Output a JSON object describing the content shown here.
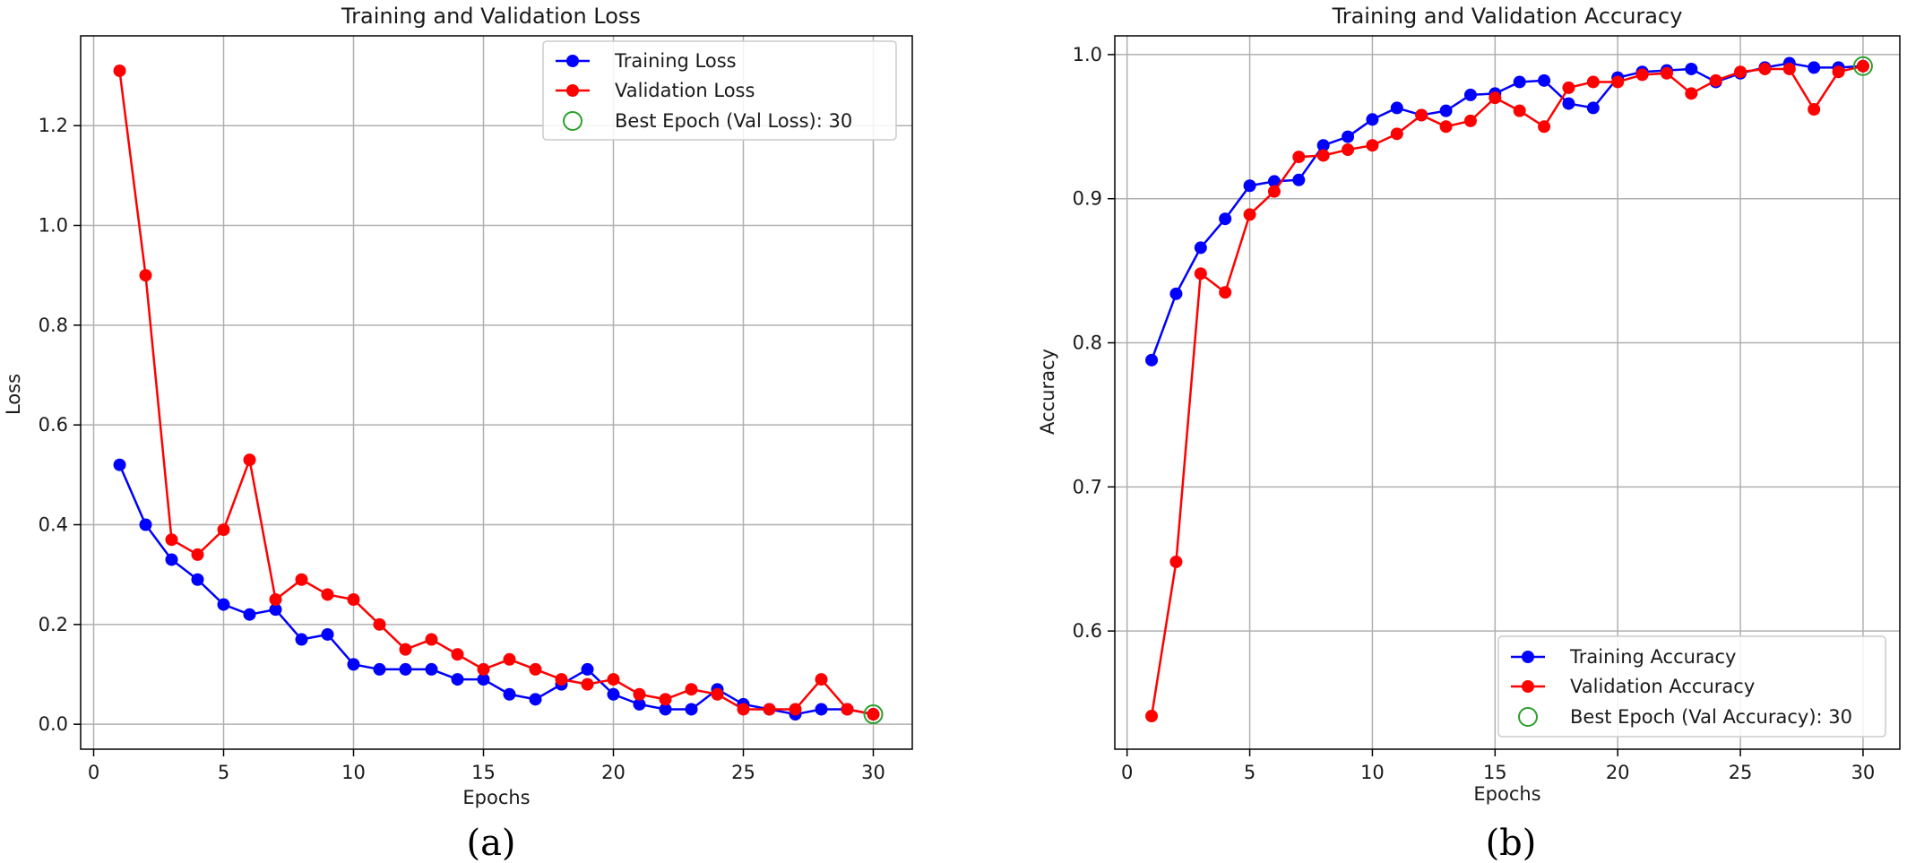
{
  "chart_data": [
    {
      "type": "line",
      "title": "Training and Validation Loss",
      "xlabel": "Epochs",
      "ylabel": "Loss",
      "caption": "(a)",
      "xlim": [
        -0.5,
        31.5
      ],
      "ylim": [
        -0.05,
        1.38
      ],
      "xticks": [
        0,
        5,
        10,
        15,
        20,
        25,
        30
      ],
      "xtick_labels": [
        "0",
        "5",
        "10",
        "15",
        "20",
        "25",
        "30"
      ],
      "yticks": [
        0.0,
        0.2,
        0.4,
        0.6,
        0.8,
        1.0,
        1.2
      ],
      "ytick_labels": [
        "0.0",
        "0.2",
        "0.4",
        "0.6",
        "0.8",
        "1.0",
        "1.2"
      ],
      "grid": true,
      "legend_position": "top-right",
      "x": [
        1,
        2,
        3,
        4,
        5,
        6,
        7,
        8,
        9,
        10,
        11,
        12,
        13,
        14,
        15,
        16,
        17,
        18,
        19,
        20,
        21,
        22,
        23,
        24,
        25,
        26,
        27,
        28,
        29,
        30
      ],
      "series": [
        {
          "name": "Training Loss",
          "color": "#0000ff",
          "values": [
            0.52,
            0.4,
            0.33,
            0.29,
            0.24,
            0.22,
            0.23,
            0.17,
            0.18,
            0.12,
            0.11,
            0.11,
            0.11,
            0.09,
            0.09,
            0.06,
            0.05,
            0.08,
            0.11,
            0.06,
            0.04,
            0.03,
            0.03,
            0.07,
            0.04,
            0.03,
            0.02,
            0.03,
            0.03,
            0.02
          ]
        },
        {
          "name": "Validation Loss",
          "color": "#ff0000",
          "values": [
            1.31,
            0.9,
            0.37,
            0.34,
            0.39,
            0.53,
            0.25,
            0.29,
            0.26,
            0.25,
            0.2,
            0.15,
            0.17,
            0.14,
            0.11,
            0.13,
            0.11,
            0.09,
            0.08,
            0.09,
            0.06,
            0.05,
            0.07,
            0.06,
            0.03,
            0.03,
            0.03,
            0.09,
            0.03,
            0.02
          ]
        }
      ],
      "best_marker": {
        "name": "Best Epoch (Val Loss): 30",
        "x": 30,
        "y": 0.02,
        "color": "#2ca02c"
      }
    },
    {
      "type": "line",
      "title": "Training and Validation Accuracy",
      "xlabel": "Epochs",
      "ylabel": "Accuracy",
      "caption": "(b)",
      "xlim": [
        -0.5,
        31.5
      ],
      "ylim": [
        0.518,
        1.013
      ],
      "xticks": [
        0,
        5,
        10,
        15,
        20,
        25,
        30
      ],
      "xtick_labels": [
        "0",
        "5",
        "10",
        "15",
        "20",
        "25",
        "30"
      ],
      "yticks": [
        0.6,
        0.7,
        0.8,
        0.9,
        1.0
      ],
      "ytick_labels": [
        "0.6",
        "0.7",
        "0.8",
        "0.9",
        "1.0"
      ],
      "grid": true,
      "legend_position": "lower-right",
      "x": [
        1,
        2,
        3,
        4,
        5,
        6,
        7,
        8,
        9,
        10,
        11,
        12,
        13,
        14,
        15,
        16,
        17,
        18,
        19,
        20,
        21,
        22,
        23,
        24,
        25,
        26,
        27,
        28,
        29,
        30
      ],
      "series": [
        {
          "name": "Training Accuracy",
          "color": "#0000ff",
          "values": [
            0.788,
            0.834,
            0.866,
            0.886,
            0.909,
            0.912,
            0.913,
            0.937,
            0.943,
            0.955,
            0.963,
            0.958,
            0.961,
            0.972,
            0.973,
            0.981,
            0.982,
            0.966,
            0.963,
            0.984,
            0.988,
            0.989,
            0.99,
            0.981,
            0.987,
            0.991,
            0.994,
            0.991,
            0.991,
            0.992
          ]
        },
        {
          "name": "Validation Accuracy",
          "color": "#ff0000",
          "values": [
            0.541,
            0.648,
            0.848,
            0.835,
            0.889,
            0.905,
            0.929,
            0.93,
            0.934,
            0.937,
            0.945,
            0.958,
            0.95,
            0.954,
            0.97,
            0.961,
            0.95,
            0.977,
            0.981,
            0.981,
            0.986,
            0.987,
            0.973,
            0.982,
            0.988,
            0.99,
            0.99,
            0.962,
            0.988,
            0.992
          ]
        }
      ],
      "best_marker": {
        "name": "Best Epoch (Val Accuracy): 30",
        "x": 30,
        "y": 0.992,
        "color": "#2ca02c"
      }
    }
  ]
}
